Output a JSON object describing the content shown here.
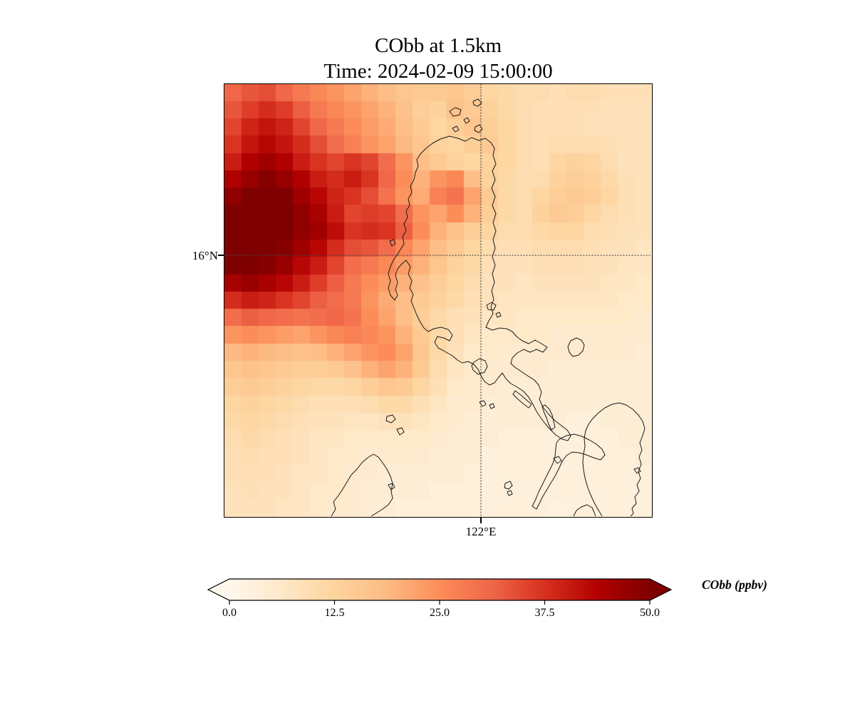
{
  "chart_data": {
    "type": "heatmap",
    "title": "CObb at 1.5km",
    "subtitle": "Time: 2024-02-09 15:00:00",
    "variable": "CObb",
    "level": "1.5km",
    "time": "2024-02-09 15:00:00",
    "x_axis": {
      "tick_label": "122°E",
      "frac": 0.6
    },
    "y_axis": {
      "tick_label": "16°N",
      "frac": 0.3955
    },
    "grid": {
      "style": "dotted",
      "color": "#4a4a4a"
    },
    "colorbar": {
      "label": "CObb (ppbv)",
      "ticks": [
        "0.0",
        "12.5",
        "25.0",
        "37.5",
        "50.0"
      ],
      "vmin": 0,
      "vmax": 50,
      "extend": "both",
      "orientation": "horizontal"
    },
    "colormap": {
      "name": "OrRd",
      "stops": [
        "#fff7ec",
        "#fee8c8",
        "#fdd49e",
        "#fdbb84",
        "#fc8d59",
        "#ef6548",
        "#d7301f",
        "#b30000",
        "#7f0000"
      ]
    },
    "units": "ppbv",
    "values": [
      [
        31,
        33,
        34,
        31,
        28,
        26,
        24,
        22,
        20,
        18,
        16,
        15,
        15,
        16,
        14,
        12,
        11,
        10,
        10,
        9,
        10,
        10,
        9,
        9,
        9
      ],
      [
        33,
        36,
        38,
        36,
        32,
        28,
        26,
        24,
        22,
        20,
        17,
        14,
        13,
        17,
        15,
        13,
        11,
        10,
        9,
        9,
        9,
        9,
        8,
        8,
        8
      ],
      [
        35,
        39,
        41,
        39,
        35,
        31,
        28,
        25,
        23,
        21,
        18,
        15,
        12,
        14,
        16,
        14,
        12,
        10,
        9,
        9,
        9,
        8,
        8,
        8,
        8
      ],
      [
        37,
        41,
        43,
        41,
        38,
        34,
        30,
        27,
        24,
        22,
        19,
        16,
        13,
        12,
        14,
        15,
        12,
        10,
        9,
        10,
        10,
        10,
        9,
        8,
        8
      ],
      [
        40,
        44,
        46,
        44,
        40,
        37,
        35,
        37,
        35,
        30,
        24,
        18,
        15,
        13,
        12,
        13,
        12,
        10,
        9,
        12,
        13,
        12,
        10,
        8,
        8
      ],
      [
        44,
        47,
        49,
        47,
        44,
        40,
        38,
        40,
        37,
        31,
        25,
        20,
        24,
        26,
        18,
        13,
        11,
        10,
        10,
        13,
        14,
        13,
        11,
        9,
        8
      ],
      [
        48,
        50,
        52,
        50,
        46,
        43,
        39,
        37,
        34,
        29,
        24,
        21,
        27,
        29,
        22,
        15,
        11,
        10,
        12,
        14,
        15,
        14,
        12,
        9,
        8
      ],
      [
        51,
        52,
        52,
        51,
        48,
        45,
        40,
        35,
        36,
        35,
        30,
        24,
        22,
        25,
        20,
        14,
        11,
        10,
        13,
        15,
        14,
        12,
        10,
        9,
        8
      ],
      [
        52,
        52,
        52,
        51,
        48,
        46,
        42,
        37,
        38,
        37,
        32,
        25,
        20,
        17,
        14,
        12,
        10,
        10,
        11,
        12,
        12,
        10,
        9,
        8,
        8
      ],
      [
        52,
        52,
        51,
        49,
        46,
        43,
        38,
        34,
        33,
        30,
        26,
        22,
        18,
        15,
        12,
        10,
        9,
        9,
        10,
        10,
        10,
        9,
        8,
        8,
        7
      ],
      [
        50,
        51,
        49,
        47,
        43,
        40,
        35,
        30,
        28,
        26,
        23,
        20,
        16,
        13,
        11,
        9,
        8,
        8,
        9,
        9,
        9,
        8,
        8,
        7,
        7
      ],
      [
        45,
        47,
        45,
        43,
        40,
        36,
        32,
        28,
        25,
        23,
        20,
        17,
        14,
        12,
        10,
        8,
        8,
        7,
        8,
        8,
        8,
        8,
        7,
        7,
        6
      ],
      [
        38,
        40,
        39,
        37,
        35,
        32,
        30,
        28,
        24,
        21,
        18,
        15,
        13,
        11,
        9,
        8,
        7,
        7,
        7,
        7,
        7,
        7,
        7,
        6,
        6
      ],
      [
        30,
        32,
        31,
        30,
        29,
        30,
        31,
        29,
        25,
        22,
        18,
        14,
        11,
        9,
        8,
        7,
        7,
        6,
        6,
        6,
        6,
        6,
        6,
        6,
        5
      ],
      [
        24,
        25,
        24,
        23,
        22,
        24,
        26,
        27,
        26,
        24,
        20,
        15,
        11,
        9,
        7,
        6,
        6,
        6,
        6,
        5,
        5,
        5,
        5,
        5,
        5
      ],
      [
        19,
        20,
        19,
        18,
        17,
        18,
        20,
        22,
        24,
        25,
        22,
        16,
        11,
        8,
        6,
        6,
        5,
        5,
        5,
        5,
        5,
        5,
        5,
        5,
        4
      ],
      [
        16,
        17,
        16,
        15,
        14,
        14,
        15,
        17,
        20,
        22,
        20,
        15,
        10,
        7,
        6,
        5,
        5,
        5,
        5,
        4,
        4,
        4,
        4,
        4,
        4
      ],
      [
        14,
        15,
        14,
        13,
        12,
        11,
        11,
        12,
        14,
        16,
        15,
        12,
        9,
        6,
        5,
        5,
        4,
        4,
        4,
        4,
        4,
        4,
        4,
        4,
        4
      ],
      [
        12,
        13,
        12,
        11,
        10,
        9,
        9,
        9,
        10,
        11,
        11,
        9,
        7,
        5,
        5,
        4,
        4,
        4,
        4,
        4,
        4,
        4,
        4,
        4,
        4
      ],
      [
        11,
        12,
        11,
        10,
        9,
        8,
        8,
        7,
        7,
        8,
        8,
        7,
        6,
        5,
        4,
        4,
        4,
        4,
        4,
        4,
        3,
        3,
        4,
        4,
        4
      ],
      [
        10,
        11,
        10,
        9,
        8,
        7,
        7,
        6,
        6,
        6,
        6,
        6,
        5,
        4,
        4,
        4,
        3,
        3,
        3,
        3,
        3,
        3,
        3,
        4,
        4
      ],
      [
        9,
        10,
        9,
        9,
        8,
        7,
        6,
        6,
        5,
        5,
        5,
        5,
        4,
        4,
        4,
        3,
        3,
        3,
        3,
        3,
        3,
        3,
        3,
        3,
        4
      ],
      [
        9,
        9,
        9,
        8,
        7,
        7,
        6,
        5,
        5,
        4,
        4,
        4,
        4,
        4,
        3,
        3,
        3,
        3,
        3,
        3,
        3,
        3,
        3,
        3,
        3
      ],
      [
        8,
        9,
        8,
        8,
        7,
        6,
        6,
        5,
        4,
        4,
        4,
        4,
        3,
        3,
        3,
        3,
        3,
        3,
        3,
        3,
        3,
        3,
        3,
        3,
        3
      ],
      [
        8,
        8,
        8,
        7,
        7,
        6,
        5,
        5,
        4,
        4,
        3,
        3,
        3,
        3,
        3,
        3,
        3,
        3,
        3,
        2,
        3,
        3,
        3,
        3,
        3
      ]
    ],
    "coastlines": [
      "M 283,90 L 292,83 L 303,77 L 316,73 L 328,76 L 338,80 L 347,75 L 357,79 L 366,76 L 374,82 L 379,90 L 377,100 L 381,112 L 376,122 L 380,134 L 375,146 L 380,158 L 376,170 L 381,182 L 377,194 L 381,206 L 377,218 L 380,230 L 376,242 L 380,254 L 376,266 L 379,278 L 375,290 L 378,302 L 374,312 L 377,322 L 371,332 L 367,341 L 376,345 L 386,342 L 396,343 L 404,347 L 410,354 L 418,360 L 427,364 L 436,359 L 445,364 L 453,369 L 447,376 L 438,372 L 429,376 L 420,372 L 411,377 L 404,384 L 402,392 L 409,398 L 418,404 L 427,410 L 435,415 L 441,422 L 445,432 L 442,442 L 447,453 L 455,463 L 464,472 L 473,479 L 481,485 L 486,493 L 482,500 L 474,498 L 465,492 L 457,484 L 450,476 L 444,468 L 438,459 L 433,449 L 427,439 L 420,431 L 411,425 L 402,420 L 395,413 L 390,405 L 385,411 L 379,419 L 372,422 L 365,417 L 360,409 L 356,400 L 350,393 L 342,389 L 334,391 L 327,387 L 320,381 L 313,377 L 306,373 L 300,370 L 295,362 L 299,354 L 308,356 L 316,360 L 320,352 L 314,344 L 304,341 L 294,343 L 286,347 L 280,342 L 275,334 L 270,324 L 266,314 L 262,304 L 265,295 L 260,286 L 263,276 L 258,266 L 261,256 L 255,247 L 249,252 L 243,259 L 240,268 L 243,278 L 240,288 L 243,296 L 239,303 L 233,296 L 230,286 L 233,276 L 230,266 L 233,256 L 237,247 L 242,240 L 247,232 L 252,224 L 250,214 L 255,205 L 252,196 L 257,187 L 255,178 L 260,170 L 258,161 L 263,152 L 261,143 L 266,134 L 268,124 L 272,115 L 270,106 L 275,98 Z",
      "M 150,606 L 156,596 L 153,586 L 160,577 L 166,568 L 172,558 L 178,548 L 186,540 L 193,531 L 201,524 L 209,519 L 216,523 L 222,531 L 228,540 L 233,550 L 236,560 L 234,571 L 236,581 L 230,590 L 222,596 L 214,601 L 206,606",
      "M 230,562 L 236,560 L 239,565 L 234,569 Z",
      "M 228,466 L 236,464 L 240,470 L 234,475 L 227,472 Z",
      "M 242,484 L 249,482 L 252,488 L 246,492 Z",
      "M 350,390 L 358,385 L 366,388 L 369,396 L 365,404 L 356,407 L 349,401 L 347,395 Z",
      "M 358,446 L 364,444 L 367,449 L 362,452 Z",
      "M 372,450 L 377,448 L 379,453 L 374,455 Z",
      "M 408,430 L 416,436 L 424,443 L 431,449 L 427,454 L 419,448 L 411,441 L 405,435 Z",
      "M 446,452 L 450,450 L 456,456 L 460,464 L 462,473 L 464,481 L 459,485 L 455,477 L 452,468 L 448,459 Z",
      "M 470,498 L 480,493 L 491,491 L 502,494 L 512,499 L 522,505 L 530,512 L 534,520 L 528,527 L 518,524 L 508,520 L 498,517 L 488,516 L 480,521 L 474,529 L 470,538 L 465,548 L 459,558 L 453,568 L 447,578 L 442,588 L 438,596 L 432,592 L 437,582 L 441,572 L 446,562 L 451,552 L 456,542 L 461,532 L 464,522 L 465,511 L 466,503 Z",
      "M 486,360 L 494,356 L 501,359 L 505,366 L 503,374 L 497,380 L 489,382 L 484,376 L 482,368 Z",
      "M 530,606 L 524,596 L 518,585 L 513,574 L 509,563 L 506,552 L 504,541 L 503,530 L 504,519 L 506,508 L 505,497 L 507,486 L 511,477 L 517,469 L 525,461 L 534,454 L 544,449 L 554,447 L 564,450 L 573,456 L 581,464 L 587,473 L 590,483 L 587,493 L 583,503 L 586,513 L 582,523 L 585,533 L 581,543 L 584,553 L 579,562 L 582,571 L 576,579 L 578,588 L 572,595 L 574,602 L 570,606",
      "M 490,606 L 494,598 L 501,593 L 509,590 L 516,594 L 519,601 L 521,606",
      "M 575,540 L 581,538 L 584,543 L 579,546 Z",
      "M 394,560 L 401,557 L 404,563 L 399,568 L 393,566 Z",
      "M 397,572 L 402,570 L 404,575 L 399,577 Z",
      "M 462,525 L 469,522 L 473,528 L 467,532 Z",
      "M 316,38 L 324,33 L 332,36 L 330,43 L 321,45 Z",
      "M 349,24 L 356,21 L 361,26 L 356,31 L 350,29 Z",
      "M 352,60 L 358,57 L 362,63 L 357,68 L 351,65 Z",
      "M 320,62 L 326,59 L 329,64 L 324,67 Z",
      "M 336,50 L 341,47 L 344,52 L 339,55 Z",
      "M 368,310 L 375,306 L 381,310 L 378,317 L 370,316 Z",
      "M 381,322 L 386,320 L 388,325 L 383,327 Z",
      "M 232,220 L 238,218 L 240,224 L 235,227 Z"
    ]
  }
}
